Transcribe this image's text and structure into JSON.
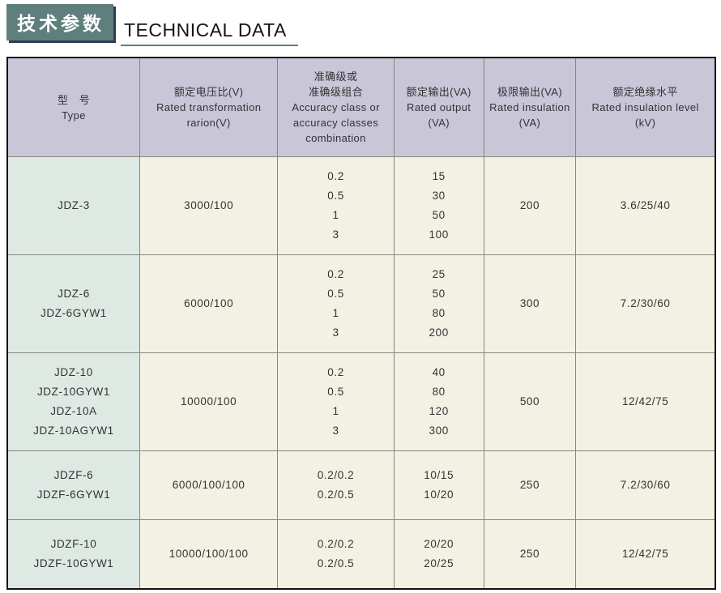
{
  "page": {
    "badge_zh": "技术参数",
    "title_en": "TECHNICAL DATA"
  },
  "colors": {
    "badge_bg": "#5f7f7c",
    "badge_shadow": "#2e3c54",
    "title_underline": "#5f7f7c",
    "header_bg": "#c9c6d8",
    "type_col_bg": "#dfe9e3",
    "cell_bg": "#f2f1e4",
    "grid_line": "#87877f",
    "outer_border": "#111111",
    "text": "#333333"
  },
  "table": {
    "column_keys": [
      "type",
      "rated-voltage-ratio",
      "accuracy-class",
      "rated-output",
      "limit-output",
      "insulation-level"
    ],
    "header_cells": [
      [
        "型　号",
        "Type"
      ],
      [
        "额定电压比(V)",
        "Rated transformation",
        "rarion(V)"
      ],
      [
        "准确级或",
        "准确级组合",
        "Accuracy class or",
        "accuracy classes",
        "combination"
      ],
      [
        "额定输出(VA)",
        "Rated output",
        "(VA)"
      ],
      [
        "极限输出(VA)",
        "Rated insulation",
        "(VA)"
      ],
      [
        "额定绝缘水平",
        "Rated insulation level",
        "(kV)"
      ]
    ],
    "rows": [
      {
        "short": false,
        "cells": [
          [
            "JDZ-3"
          ],
          [
            "3000/100"
          ],
          [
            "0.2",
            "0.5",
            "1",
            "3"
          ],
          [
            "15",
            "30",
            "50",
            "100"
          ],
          [
            "200"
          ],
          [
            "3.6/25/40"
          ]
        ]
      },
      {
        "short": false,
        "cells": [
          [
            "JDZ-6",
            "JDZ-6GYW1"
          ],
          [
            "6000/100"
          ],
          [
            "0.2",
            "0.5",
            "1",
            "3"
          ],
          [
            "25",
            "50",
            "80",
            "200"
          ],
          [
            "300"
          ],
          [
            "7.2/30/60"
          ]
        ]
      },
      {
        "short": false,
        "cells": [
          [
            "JDZ-10",
            "JDZ-10GYW1",
            "JDZ-10A",
            "JDZ-10AGYW1"
          ],
          [
            "10000/100"
          ],
          [
            "0.2",
            "0.5",
            "1",
            "3"
          ],
          [
            "40",
            "80",
            "120",
            "300"
          ],
          [
            "500"
          ],
          [
            "12/42/75"
          ]
        ]
      },
      {
        "short": true,
        "cells": [
          [
            "JDZF-6",
            "JDZF-6GYW1"
          ],
          [
            "6000/100/100"
          ],
          [
            "0.2/0.2",
            "0.2/0.5"
          ],
          [
            "10/15",
            "10/20"
          ],
          [
            "250"
          ],
          [
            "7.2/30/60"
          ]
        ]
      },
      {
        "short": true,
        "cells": [
          [
            "JDZF-10",
            "JDZF-10GYW1"
          ],
          [
            "10000/100/100"
          ],
          [
            "0.2/0.2",
            "0.2/0.5"
          ],
          [
            "20/20",
            "20/25"
          ],
          [
            "250"
          ],
          [
            "12/42/75"
          ]
        ]
      }
    ]
  }
}
